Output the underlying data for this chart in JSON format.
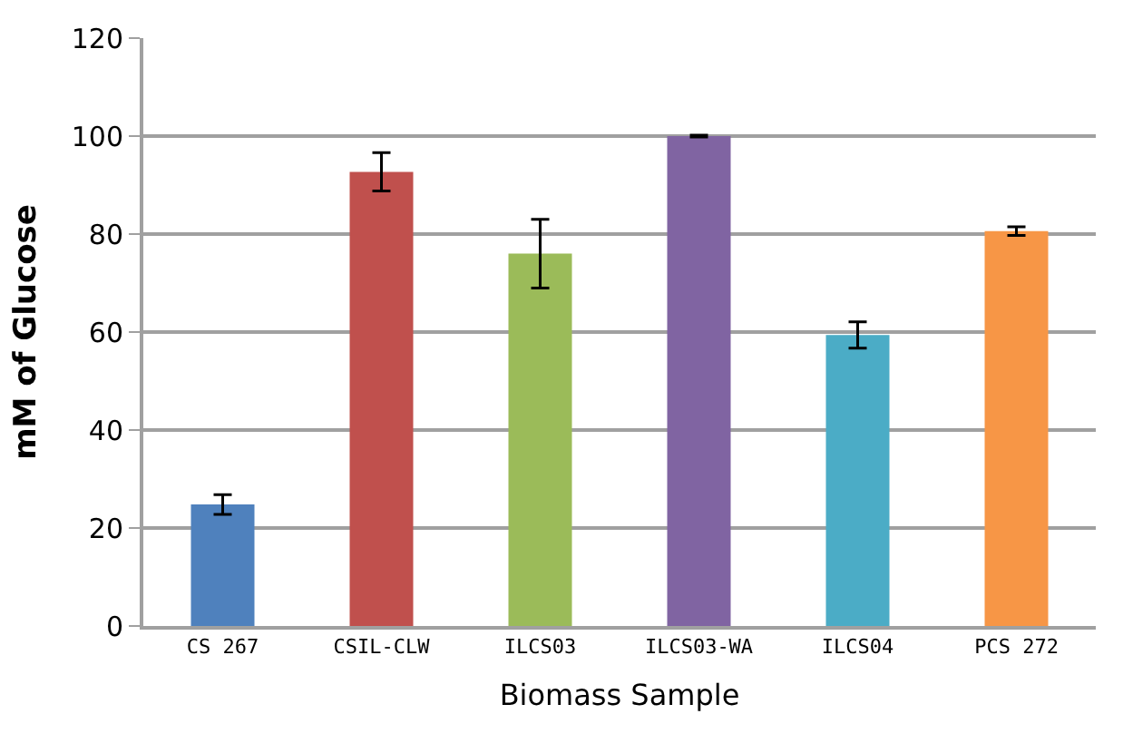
{
  "chart_data": {
    "type": "bar",
    "xlabel": "Biomass Sample",
    "ylabel": "mM of Glucose",
    "categories": [
      "CS 267",
      "CSIL-CLW",
      "ILCS03",
      "ILCS03-WA",
      "ILCS04",
      "PCS 272"
    ],
    "values": [
      24.8,
      92.7,
      76.0,
      100.0,
      59.4,
      80.6
    ],
    "colors": [
      "#4f81bd",
      "#c0504d",
      "#9bbb59",
      "#8064a2",
      "#4bacc6",
      "#f79646"
    ],
    "errors": [
      2.0,
      3.9,
      7.0,
      0.2,
      2.7,
      0.9
    ],
    "ylim": [
      0,
      120
    ],
    "yticks": [
      0,
      20,
      40,
      60,
      80,
      100,
      120
    ],
    "grid": "y",
    "legend": false
  }
}
